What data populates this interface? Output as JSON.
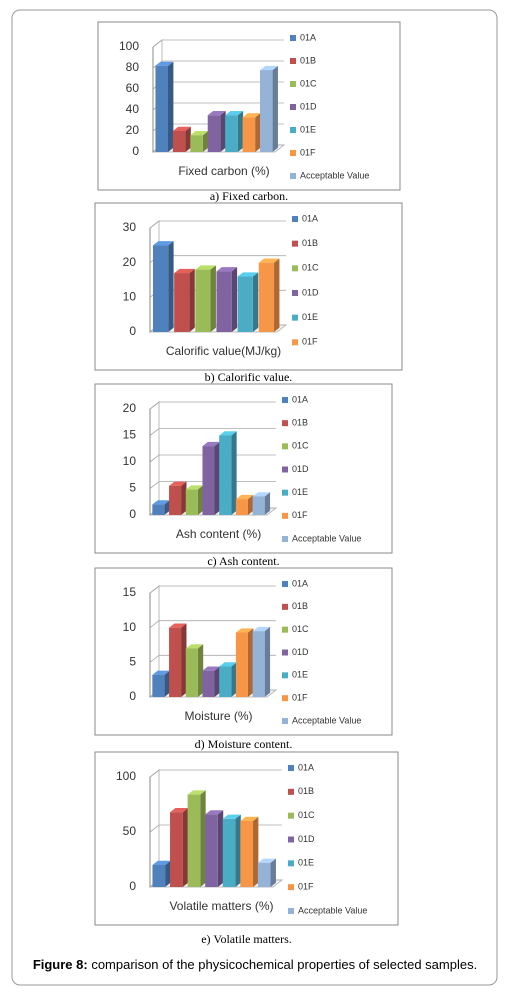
{
  "chart_data": [
    {
      "type": "bar",
      "x_label": "Fixed carbon (%)",
      "caption": "a) Fixed carbon.",
      "ylim": [
        0,
        100
      ],
      "yticks": [
        0,
        20,
        40,
        60,
        80,
        100
      ],
      "grid": true,
      "series": [
        {
          "name": "01A",
          "color": "#4f81bd",
          "values": [
            82
          ]
        },
        {
          "name": "01B",
          "color": "#c0504d",
          "values": [
            20
          ]
        },
        {
          "name": "01C",
          "color": "#9bbb59",
          "values": [
            16
          ]
        },
        {
          "name": "01D",
          "color": "#8064a2",
          "values": [
            35
          ]
        },
        {
          "name": "01E",
          "color": "#4bacc6",
          "values": [
            35
          ]
        },
        {
          "name": "01F",
          "color": "#f79646",
          "values": [
            33
          ]
        },
        {
          "name": "Acceptable Value",
          "color": "#95b3d7",
          "values": [
            78
          ]
        }
      ]
    },
    {
      "type": "bar",
      "x_label": "Calorific value(MJ/kg)",
      "caption": "b) Calorific value.",
      "ylim": [
        0,
        30
      ],
      "yticks": [
        0,
        10,
        20,
        30
      ],
      "grid": true,
      "series": [
        {
          "name": "01A",
          "color": "#4f81bd",
          "values": [
            25
          ]
        },
        {
          "name": "01B",
          "color": "#c0504d",
          "values": [
            17
          ]
        },
        {
          "name": "01C",
          "color": "#9bbb59",
          "values": [
            18
          ]
        },
        {
          "name": "01D",
          "color": "#8064a2",
          "values": [
            17.5
          ]
        },
        {
          "name": "01E",
          "color": "#4bacc6",
          "values": [
            16
          ]
        },
        {
          "name": "01F",
          "color": "#f79646",
          "values": [
            20
          ]
        }
      ]
    },
    {
      "type": "bar",
      "x_label": "Ash content (%)",
      "caption": "c) Ash content.",
      "ylim": [
        0,
        20
      ],
      "yticks": [
        0,
        5,
        10,
        15,
        20
      ],
      "grid": true,
      "series": [
        {
          "name": "01A",
          "color": "#4f81bd",
          "values": [
            2
          ]
        },
        {
          "name": "01B",
          "color": "#c0504d",
          "values": [
            5.5
          ]
        },
        {
          "name": "01C",
          "color": "#9bbb59",
          "values": [
            4.8
          ]
        },
        {
          "name": "01D",
          "color": "#8064a2",
          "values": [
            13
          ]
        },
        {
          "name": "01E",
          "color": "#4bacc6",
          "values": [
            15
          ]
        },
        {
          "name": "01F",
          "color": "#f79646",
          "values": [
            3
          ]
        },
        {
          "name": "Acceptable Value",
          "color": "#95b3d7",
          "values": [
            3.5
          ]
        }
      ]
    },
    {
      "type": "bar",
      "x_label": "Moisture (%)",
      "caption": "d) Moisture content.",
      "ylim": [
        0,
        15
      ],
      "yticks": [
        0,
        5,
        10,
        15
      ],
      "grid": true,
      "series": [
        {
          "name": "01A",
          "color": "#4f81bd",
          "values": [
            3.2
          ]
        },
        {
          "name": "01B",
          "color": "#c0504d",
          "values": [
            10
          ]
        },
        {
          "name": "01C",
          "color": "#9bbb59",
          "values": [
            7
          ]
        },
        {
          "name": "01D",
          "color": "#8064a2",
          "values": [
            3.8
          ]
        },
        {
          "name": "01E",
          "color": "#4bacc6",
          "values": [
            4.4
          ]
        },
        {
          "name": "01F",
          "color": "#f79646",
          "values": [
            9.3
          ]
        },
        {
          "name": "Acceptable Value",
          "color": "#95b3d7",
          "values": [
            9.5
          ]
        }
      ]
    },
    {
      "type": "bar",
      "x_label": "Volatile matters (%)",
      "caption": "e) Volatile matters.",
      "ylim": [
        0,
        100
      ],
      "yticks": [
        0,
        50,
        100
      ],
      "grid": true,
      "series": [
        {
          "name": "01A",
          "color": "#4f81bd",
          "values": [
            20
          ]
        },
        {
          "name": "01B",
          "color": "#c0504d",
          "values": [
            68
          ]
        },
        {
          "name": "01C",
          "color": "#9bbb59",
          "values": [
            84
          ]
        },
        {
          "name": "01D",
          "color": "#8064a2",
          "values": [
            66
          ]
        },
        {
          "name": "01E",
          "color": "#4bacc6",
          "values": [
            62
          ]
        },
        {
          "name": "01F",
          "color": "#f79646",
          "values": [
            60
          ]
        },
        {
          "name": "Acceptable Value",
          "color": "#95b3d7",
          "values": [
            22
          ]
        }
      ]
    }
  ],
  "figure_caption": {
    "label": "Figure 8:",
    "text": " comparison of the physicochemical properties of selected samples."
  }
}
